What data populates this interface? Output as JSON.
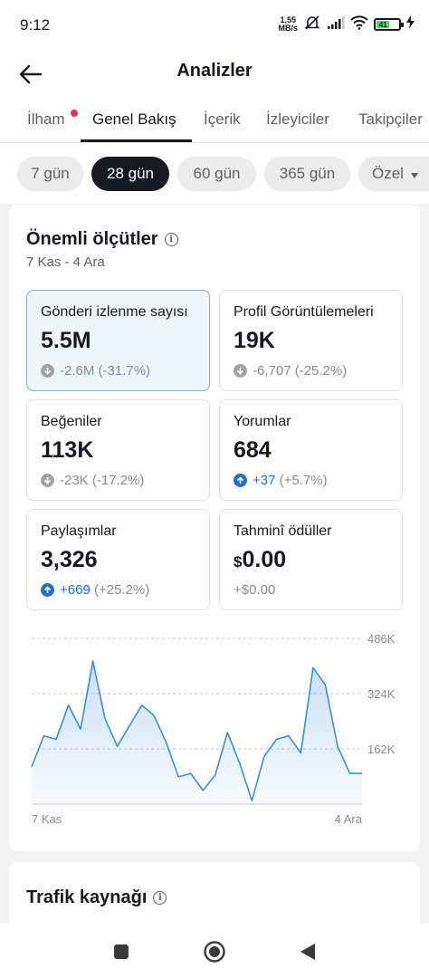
{
  "status_bar": {
    "time": "9:12",
    "speed_value": "1,55",
    "speed_unit": "MB/s",
    "battery": "41"
  },
  "header": {
    "title": "Analizler"
  },
  "tabs": [
    {
      "label": "İlham",
      "has_dot": true
    },
    {
      "label": "Genel Bakış",
      "active": true
    },
    {
      "label": "İçerik"
    },
    {
      "label": "İzleyiciler"
    },
    {
      "label": "Takipçiler"
    }
  ],
  "ranges": [
    {
      "label": "7 gün"
    },
    {
      "label": "28 gün",
      "active": true
    },
    {
      "label": "60 gün"
    },
    {
      "label": "365 gün"
    },
    {
      "label": "Özel"
    }
  ],
  "key_metrics": {
    "title": "Önemli ölçütler",
    "date_range": "7 Kas - 4 Ara",
    "items": [
      {
        "label": "Gönderi izlenme sayısı",
        "value": "5.5M",
        "delta": "-2.6M",
        "pct": "(-31.7%)",
        "direction": "down",
        "selected": true
      },
      {
        "label": "Profil Görüntülemeleri",
        "value": "19K",
        "delta": "-6,707",
        "pct": "(-25.2%)",
        "direction": "down"
      },
      {
        "label": "Beğeniler",
        "value": "113K",
        "delta": "-23K",
        "pct": "(-17.2%)",
        "direction": "down"
      },
      {
        "label": "Yorumlar",
        "value": "684",
        "delta": "+37",
        "pct": "(+5.7%)",
        "direction": "up"
      },
      {
        "label": "Paylaşımlar",
        "value": "3,326",
        "delta": "+669",
        "pct": "(+25.2%)",
        "direction": "up"
      },
      {
        "label": "Tahminî ödüller",
        "currency": "$",
        "value": "0.00",
        "delta": "+$0.00",
        "pct": "",
        "direction": "none"
      }
    ]
  },
  "chart_data": {
    "type": "area",
    "series": [
      {
        "values": [
          110,
          200,
          190,
          290,
          220,
          420,
          250,
          170,
          230,
          290,
          260,
          180,
          80,
          90,
          40,
          85,
          210,
          120,
          10,
          140,
          190,
          200,
          150,
          400,
          350,
          170,
          90,
          90
        ]
      }
    ],
    "x_tick_labels": [
      "7 Kas",
      "4 Ara"
    ],
    "y_ticks": [
      162000,
      324000,
      486000
    ],
    "y_tick_labels": [
      "162K",
      "324K",
      "486K"
    ],
    "ylim": [
      0,
      486000
    ],
    "grid": "dashed-horizontal",
    "color": "#3b8fd9"
  },
  "traffic": {
    "title": "Trafik kaynağı"
  },
  "colors": {
    "accent": "#1f72c7",
    "dot": "#fe2c55",
    "text": "#161823"
  }
}
